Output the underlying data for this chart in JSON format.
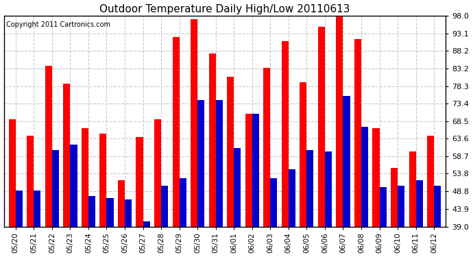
{
  "title": "Outdoor Temperature Daily High/Low 20110613",
  "copyright": "Copyright 2011 Cartronics.com",
  "dates": [
    "05/20",
    "05/21",
    "05/22",
    "05/23",
    "05/24",
    "05/25",
    "05/26",
    "05/27",
    "05/28",
    "05/29",
    "05/30",
    "05/31",
    "06/01",
    "06/02",
    "06/03",
    "06/04",
    "06/05",
    "06/06",
    "06/07",
    "06/08",
    "06/09",
    "06/10",
    "06/11",
    "06/12"
  ],
  "highs": [
    69.0,
    64.5,
    84.0,
    79.0,
    66.5,
    65.0,
    52.0,
    64.0,
    69.0,
    92.0,
    97.0,
    87.5,
    81.0,
    70.5,
    83.5,
    91.0,
    79.5,
    95.0,
    98.0,
    91.5,
    66.5,
    55.5,
    60.0,
    64.5
  ],
  "lows": [
    49.0,
    49.0,
    60.5,
    62.0,
    47.5,
    47.0,
    46.5,
    40.5,
    50.5,
    52.5,
    74.5,
    74.5,
    61.0,
    70.5,
    52.5,
    55.0,
    60.5,
    60.0,
    75.5,
    67.0,
    50.0,
    50.5,
    52.0,
    50.5
  ],
  "high_color": "#ff0000",
  "low_color": "#0000cc",
  "bg_color": "#ffffff",
  "grid_color": "#c8c8c8",
  "ymin": 39.0,
  "ymax": 98.0,
  "yticks": [
    39.0,
    43.9,
    48.8,
    53.8,
    58.7,
    63.6,
    68.5,
    73.4,
    78.3,
    83.2,
    88.2,
    93.1,
    98.0
  ],
  "bar_width": 0.38,
  "title_fontsize": 11,
  "tick_fontsize": 8,
  "xlabel_fontsize": 7.5
}
